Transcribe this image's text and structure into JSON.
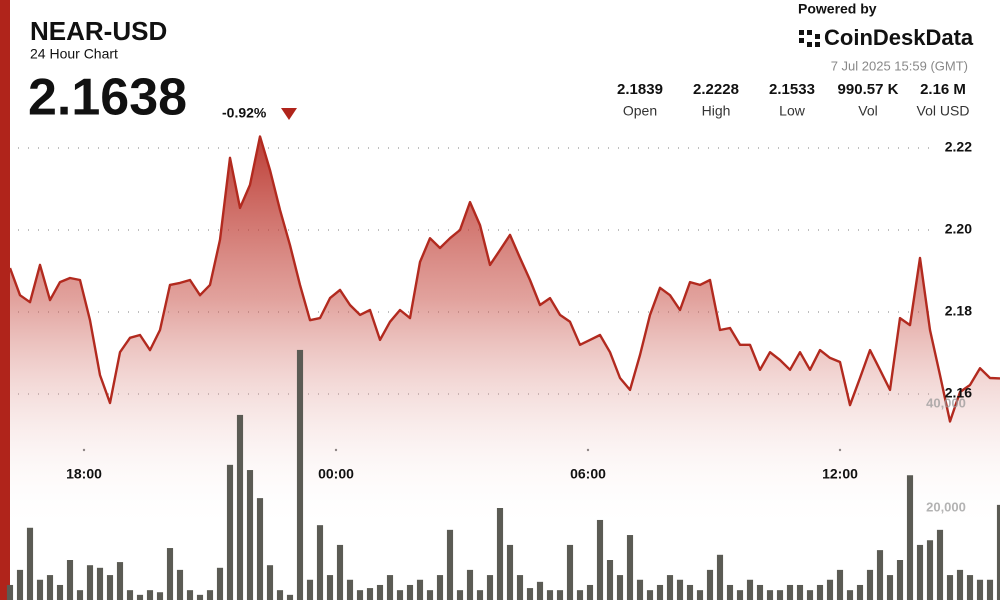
{
  "header": {
    "title": "NEAR-USD",
    "subtitle": "24 Hour Chart",
    "price": "2.1638",
    "change": "-0.92%",
    "powered_by": "Powered by",
    "brand": "CoinDeskData",
    "timestamp": "7 Jul 2025 15:59 (GMT)",
    "stats": [
      {
        "value": "2.1839",
        "label": "Open"
      },
      {
        "value": "2.2228",
        "label": "High"
      },
      {
        "value": "2.1533",
        "label": "Low"
      },
      {
        "value": "990.57 K",
        "label": "Vol"
      },
      {
        "value": "2.16 M",
        "label": "Vol USD"
      }
    ]
  },
  "chart_data": {
    "type": "line",
    "color": "#b22a1f",
    "values": [
      2.1907,
      2.1841,
      2.1824,
      2.1915,
      2.1829,
      2.1873,
      2.1883,
      2.1878,
      2.178,
      2.1646,
      2.1578,
      2.1702,
      2.1737,
      2.1744,
      2.1707,
      2.1756,
      2.1866,
      2.1871,
      2.1878,
      2.1841,
      2.1866,
      2.1976,
      2.2176,
      2.2054,
      2.211,
      2.2228,
      2.2146,
      2.2049,
      2.1963,
      2.1866,
      2.178,
      2.1785,
      2.1834,
      2.1854,
      2.1817,
      2.1793,
      2.1805,
      2.1732,
      2.1776,
      2.1805,
      2.1785,
      2.1922,
      2.198,
      2.1956,
      2.198,
      2.2,
      2.2068,
      2.2012,
      2.1915,
      2.1951,
      2.1988,
      2.1932,
      2.1878,
      2.1817,
      2.1834,
      2.1793,
      2.1776,
      2.172,
      2.1732,
      2.1744,
      2.1702,
      2.1639,
      2.161,
      2.1695,
      2.1793,
      2.1859,
      2.1841,
      2.1805,
      2.1873,
      2.1866,
      2.1878,
      2.1756,
      2.1761,
      2.172,
      2.172,
      2.1659,
      2.1702,
      2.1683,
      2.1659,
      2.1702,
      2.1659,
      2.1707,
      2.1688,
      2.1678,
      2.1573,
      2.1639,
      2.1707,
      2.1659,
      2.161,
      2.1785,
      2.1768,
      2.1932,
      2.1756,
      2.1646,
      2.1533,
      2.1605,
      2.1622,
      2.1663,
      2.1639,
      2.1638
    ],
    "xlim": [
      0,
      99
    ],
    "xticks": [
      {
        "value": 7.4,
        "label": "18:00"
      },
      {
        "value": 32.6,
        "label": "00:00"
      },
      {
        "value": 57.8,
        "label": "06:00"
      },
      {
        "value": 83.0,
        "label": "12:00"
      }
    ],
    "ylim": [
      2.11,
      2.225
    ],
    "yticks": [
      2.16,
      2.18,
      {
        "value": 2.2,
        "label": "2.20"
      },
      2.22
    ],
    "grid": true,
    "volume": {
      "type": "bar",
      "axis": "y2",
      "color": "#5b5b54",
      "values": [
        5200,
        8100,
        16200,
        6200,
        7100,
        5200,
        10000,
        4200,
        9000,
        8500,
        7100,
        9600,
        4200,
        3300,
        4200,
        3800,
        12300,
        8100,
        4200,
        3300,
        4200,
        8500,
        28300,
        37900,
        27300,
        21900,
        9000,
        4200,
        3300,
        50400,
        6200,
        16700,
        7100,
        12900,
        6200,
        4200,
        4600,
        5200,
        7100,
        4200,
        5200,
        6200,
        4200,
        7100,
        15800,
        4200,
        8100,
        4200,
        7100,
        20000,
        12900,
        7100,
        4600,
        5800,
        4200,
        4200,
        12900,
        4200,
        5200,
        17700,
        10000,
        7100,
        14800,
        6200,
        4200,
        5200,
        7100,
        6200,
        5200,
        4200,
        8100,
        11000,
        5200,
        4200,
        6200,
        5200,
        4200,
        4200,
        5200,
        5200,
        4200,
        5200,
        6200,
        8100,
        4200,
        5200,
        8100,
        11900,
        7100,
        10000,
        26300,
        12900,
        13800,
        15800,
        7100,
        8100,
        7100,
        6200,
        6200,
        20600
      ]
    },
    "y2lim": [
      0,
      100000
    ],
    "y2ticks": [
      {
        "value": 20000,
        "label": "20,000"
      },
      {
        "value": 40000,
        "label": "40,000"
      }
    ]
  }
}
